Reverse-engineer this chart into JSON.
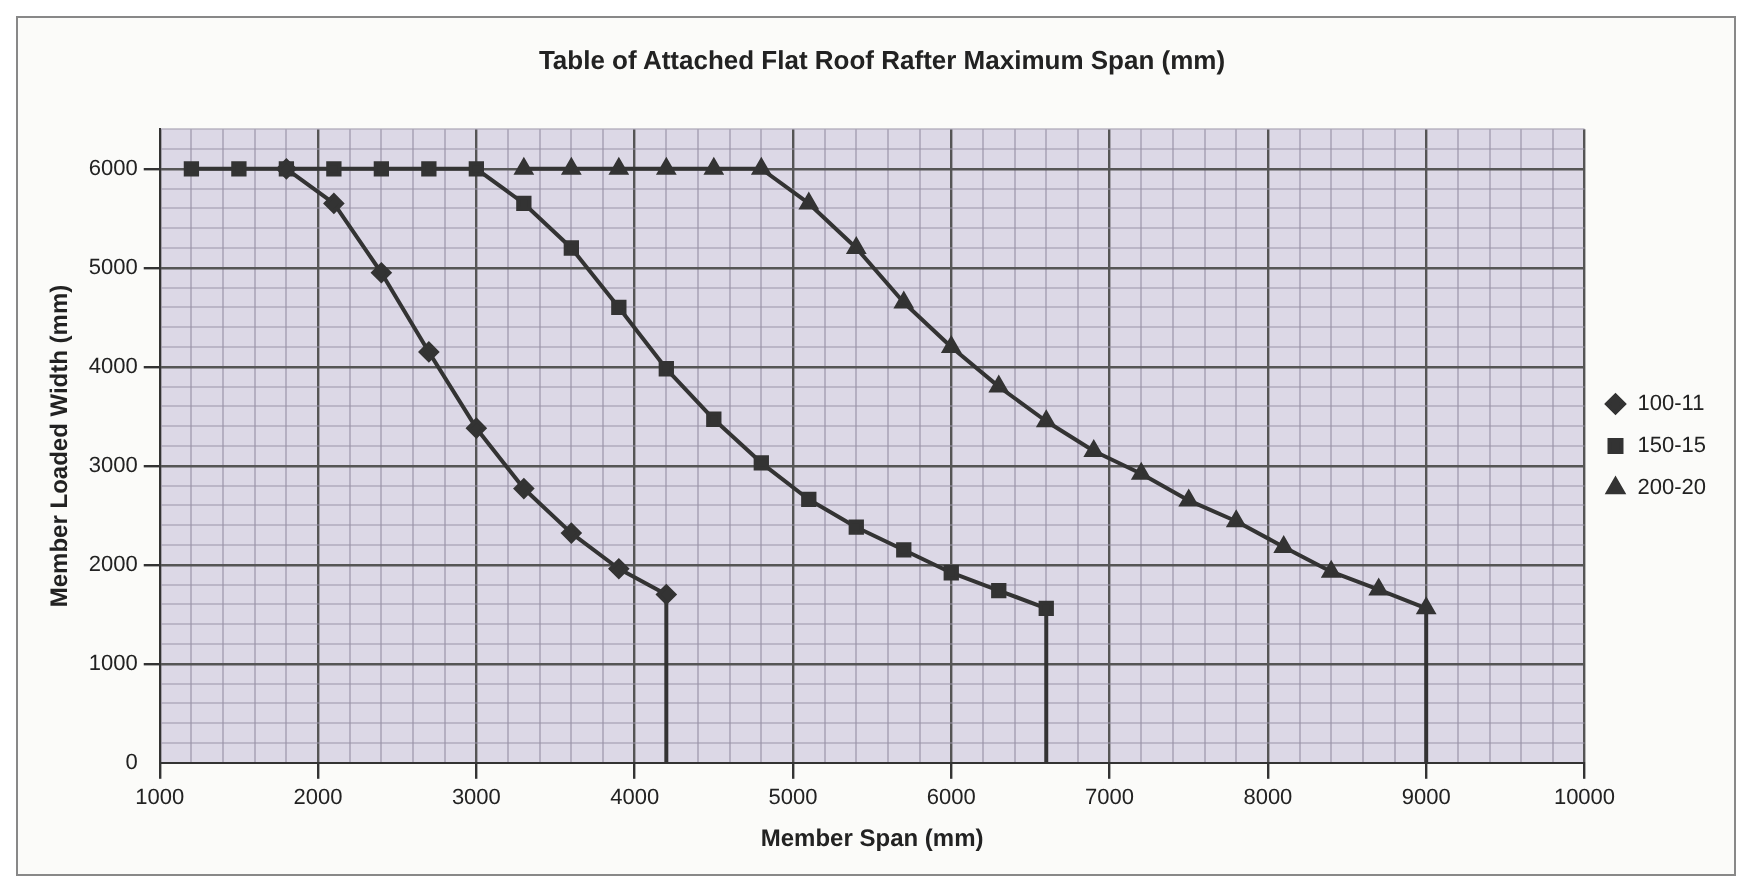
{
  "chart_data": {
    "type": "line",
    "title": "Table of Attached Flat Roof Rafter Maximum Span (mm)",
    "xlabel": "Member Span (mm)",
    "ylabel": "Member Loaded Width (mm)",
    "series": [
      {
        "name": "100-11",
        "color": "#333333",
        "marker": "diamond",
        "x": [
          1800,
          2100,
          2400,
          2700,
          3000,
          3300,
          3600,
          3900,
          4200,
          4200
        ],
        "values": [
          6000,
          5650,
          4950,
          4150,
          3380,
          2770,
          2320,
          1960,
          1700,
          0
        ]
      },
      {
        "name": "150-15",
        "color": "#333333",
        "marker": "square",
        "x": [
          1200,
          1500,
          1800,
          2100,
          2400,
          2700,
          3000,
          3300,
          3600,
          3900,
          4200,
          4500,
          4800,
          5100,
          5400,
          5700,
          6000,
          6300,
          6600,
          6600
        ],
        "values": [
          6000,
          6000,
          6000,
          6000,
          6000,
          6000,
          6000,
          5650,
          5200,
          4600,
          3980,
          3470,
          3030,
          2660,
          2380,
          2150,
          1920,
          1740,
          1560,
          0
        ]
      },
      {
        "name": "200-20",
        "color": "#333333",
        "marker": "triangle",
        "x": [
          3300,
          3600,
          3900,
          4200,
          4500,
          4800,
          5100,
          5400,
          5700,
          6000,
          6300,
          6600,
          6900,
          7200,
          7500,
          7800,
          8100,
          8400,
          8700,
          9000,
          9000
        ],
        "values": [
          6000,
          6000,
          6000,
          6000,
          6000,
          6000,
          5650,
          5200,
          4650,
          4200,
          3800,
          3450,
          3150,
          2920,
          2650,
          2440,
          2180,
          1930,
          1750,
          1560,
          0
        ]
      }
    ],
    "xlim": [
      1000,
      10000
    ],
    "xticks": [
      1000,
      {
        "value": 1200,
        "label": null
      },
      {
        "value": 1400,
        "label": null
      },
      {
        "value": 1600,
        "label": null
      },
      {
        "value": 1800,
        "label": null
      },
      2000,
      {
        "value": 2200,
        "label": null
      },
      {
        "value": 2400,
        "label": null
      },
      {
        "value": 2600,
        "label": null
      },
      {
        "value": 2800,
        "label": null
      },
      3000,
      {
        "value": 3200,
        "label": null
      },
      {
        "value": 3400,
        "label": null
      },
      {
        "value": 3600,
        "label": null
      },
      {
        "value": 3800,
        "label": null
      },
      4000,
      {
        "value": 4200,
        "label": null
      },
      {
        "value": 4400,
        "label": null
      },
      {
        "value": 4600,
        "label": null
      },
      {
        "value": 4800,
        "label": null
      },
      5000,
      {
        "value": 5200,
        "label": null
      },
      {
        "value": 5400,
        "label": null
      },
      {
        "value": 5600,
        "label": null
      },
      {
        "value": 5800,
        "label": null
      },
      6000,
      {
        "value": 6200,
        "label": null
      },
      {
        "value": 6400,
        "label": null
      },
      {
        "value": 6600,
        "label": null
      },
      {
        "value": 6800,
        "label": null
      },
      7000,
      {
        "value": 7200,
        "label": null
      },
      {
        "value": 7400,
        "label": null
      },
      {
        "value": 7600,
        "label": null
      },
      {
        "value": 7800,
        "label": null
      },
      8000,
      {
        "value": 8200,
        "label": null
      },
      {
        "value": 8400,
        "label": null
      },
      {
        "value": 8600,
        "label": null
      },
      {
        "value": 8800,
        "label": null
      },
      9000,
      {
        "value": 9200,
        "label": null
      },
      {
        "value": 9400,
        "label": null
      },
      {
        "value": 9600,
        "label": null
      },
      {
        "value": 9800,
        "label": null
      },
      10000
    ],
    "ylim": [
      0,
      6400
    ],
    "yticks": [
      0,
      {
        "value": 200,
        "label": null
      },
      {
        "value": 400,
        "label": null
      },
      {
        "value": 600,
        "label": null
      },
      {
        "value": 800,
        "label": null
      },
      1000,
      {
        "value": 1200,
        "label": null
      },
      {
        "value": 1400,
        "label": null
      },
      {
        "value": 1600,
        "label": null
      },
      {
        "value": 1800,
        "label": null
      },
      2000,
      {
        "value": 2200,
        "label": null
      },
      {
        "value": 2400,
        "label": null
      },
      {
        "value": 2600,
        "label": null
      },
      {
        "value": 2800,
        "label": null
      },
      3000,
      {
        "value": 3200,
        "label": null
      },
      {
        "value": 3400,
        "label": null
      },
      {
        "value": 3600,
        "label": null
      },
      {
        "value": 3800,
        "label": null
      },
      4000,
      {
        "value": 4200,
        "label": null
      },
      {
        "value": 4400,
        "label": null
      },
      {
        "value": 4600,
        "label": null
      },
      {
        "value": 4800,
        "label": null
      },
      5000,
      {
        "value": 5200,
        "label": null
      },
      {
        "value": 5400,
        "label": null
      },
      {
        "value": 5600,
        "label": null
      },
      {
        "value": 5800,
        "label": null
      },
      6000,
      {
        "value": 6200,
        "label": null
      },
      {
        "value": 6400,
        "label": null
      }
    ],
    "grid": true,
    "legend": "right",
    "line_style": "solid"
  }
}
